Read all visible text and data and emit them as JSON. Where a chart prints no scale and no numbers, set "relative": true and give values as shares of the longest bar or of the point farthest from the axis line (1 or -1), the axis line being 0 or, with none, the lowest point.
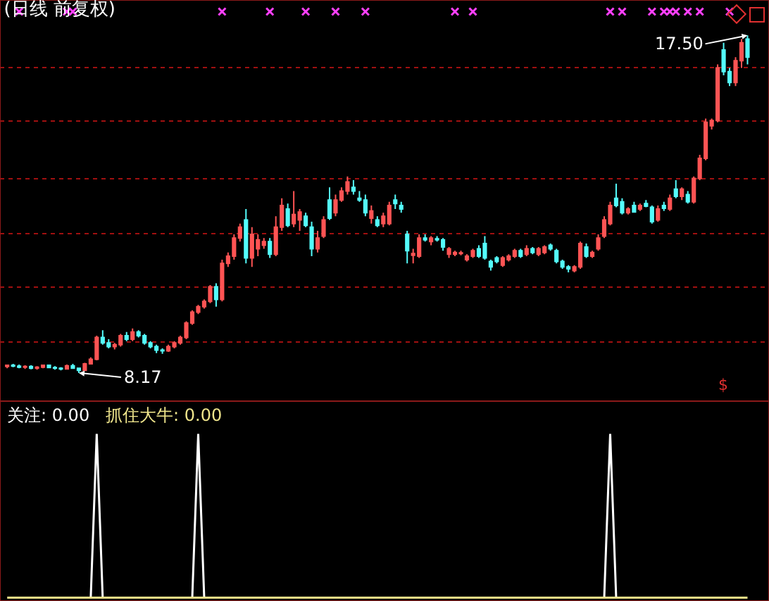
{
  "chart_data": [
    {
      "type": "candlestick",
      "title": "(日线 前复权)",
      "ylim": [
        7.39,
        18.48
      ],
      "yticks": [
        {
          "value": 9.03,
          "label": null
        },
        {
          "value": 10.54,
          "label": null
        },
        {
          "value": 12.02,
          "label": null
        },
        {
          "value": 13.54,
          "label": null
        },
        {
          "value": 15.13,
          "label": null
        },
        {
          "value": 16.61,
          "label": null
        }
      ],
      "grid": "y",
      "categories": [
        null,
        null,
        null,
        null,
        null,
        null,
        null,
        null,
        null,
        null,
        null,
        null,
        null,
        null,
        null,
        null,
        null,
        null,
        null,
        null,
        null,
        null,
        null,
        null,
        null,
        null,
        null,
        null,
        null,
        null,
        null,
        null,
        null,
        null,
        null,
        null,
        null,
        null,
        null,
        null,
        null,
        null,
        null,
        null,
        null,
        null,
        null,
        null,
        null,
        null,
        null,
        null,
        null,
        null,
        null,
        null,
        null,
        null,
        null,
        null,
        null,
        null,
        null,
        null,
        null,
        null,
        null,
        null,
        null,
        null,
        null,
        null,
        null,
        null,
        null,
        null,
        null,
        null,
        null,
        null,
        null,
        null,
        null,
        null,
        null,
        null,
        null,
        null,
        null,
        null,
        null,
        null,
        null,
        null,
        null,
        null,
        null,
        null,
        null,
        null,
        null,
        null,
        null,
        null,
        null,
        null,
        null,
        null,
        null,
        null,
        null,
        null,
        null,
        null,
        null,
        null,
        null,
        null,
        null,
        null,
        null,
        null,
        null,
        null,
        null
      ],
      "annotations": [
        "17.50",
        "8.17",
        "$"
      ],
      "series": [
        {
          "colors": [
            "#ff5454",
            "#54fcfc",
            "#54fcfc",
            "#ff5454",
            "#54fcfc",
            "#ff5454",
            "#ff5454",
            "#54fcfc",
            "#54fcfc",
            "#54fcfc",
            "#ff5454",
            "#54fcfc",
            "#54fcfc",
            "#ff5454",
            "#ff5454",
            "#ff5454",
            "#54fcfc",
            "#54fcfc",
            "#ff5454",
            "#ff5454",
            "#54fcfc",
            "#ff5454",
            "#54fcfc",
            "#54fcfc",
            "#54fcfc",
            "#54fcfc",
            "#54fcfc",
            "#ff5454",
            "#ff5454",
            "#ff5454",
            "#ff5454",
            "#ff5454",
            "#ff5454",
            "#ff5454",
            "#ff5454",
            "#54fcfc",
            "#ff5454",
            "#ff5454",
            "#ff5454",
            "#ff5454",
            "#54fcfc",
            "#ff5454",
            "#ff5454",
            "#ff5454",
            "#54fcfc",
            "#ff5454",
            "#ff5454",
            "#54fcfc",
            "#ff5454",
            "#ff5454",
            "#54fcfc",
            "#54fcfc",
            "#ff5454",
            "#ff5454",
            "#54fcfc",
            "#ff5454",
            "#ff5454",
            "#ff5454",
            "#54fcfc",
            "#54fcfc",
            "#54fcfc",
            "#ff5454",
            "#54fcfc",
            "#ff5454",
            "#ff5454",
            "#54fcfc",
            "#54fcfc",
            "#54fcfc",
            "#ff5454",
            "#ff5454",
            "#54fcfc",
            "#ff5454",
            "#54fcfc",
            "#54fcfc",
            "#ff5454",
            "#ff5454",
            "#ff5454",
            "#ff5454",
            "#ff5454",
            "#54fcfc",
            "#54fcfc",
            "#54fcfc",
            "#54fcfc",
            "#ff5454",
            "#ff5454",
            "#ff5454",
            "#54fcfc",
            "#ff5454",
            "#54fcfc",
            "#ff5454",
            "#ff5454",
            "#54fcfc",
            "#54fcfc",
            "#54fcfc",
            "#54fcfc",
            "#ff5454",
            "#ff5454",
            "#54fcfc",
            "#ff5454",
            "#ff5454",
            "#ff5454",
            "#ff5454",
            "#54fcfc",
            "#54fcfc",
            "#ff5454",
            "#54fcfc",
            "#ff5454",
            "#54fcfc",
            "#54fcfc",
            "#ff5454",
            "#54fcfc",
            "#ff5454",
            "#54fcfc",
            "#ff5454",
            "#54fcfc",
            "#ff5454",
            "#ff5454",
            "#ff5454",
            "#ff5454",
            "#ff5454",
            "#54fcfc",
            "#54fcfc",
            "#ff5454",
            "#ff5454",
            "#54fcfc"
          ],
          "ohlc": [
            [
              8.35,
              8.4,
              8.3,
              8.38
            ],
            [
              8.38,
              8.42,
              8.33,
              8.36
            ],
            [
              8.36,
              8.4,
              8.3,
              8.33
            ],
            [
              8.33,
              8.38,
              8.28,
              8.35
            ],
            [
              8.35,
              8.38,
              8.27,
              8.3
            ],
            [
              8.3,
              8.36,
              8.26,
              8.33
            ],
            [
              8.33,
              8.4,
              8.3,
              8.38
            ],
            [
              8.38,
              8.4,
              8.3,
              8.32
            ],
            [
              8.32,
              8.36,
              8.26,
              8.3
            ],
            [
              8.3,
              8.33,
              8.24,
              8.28
            ],
            [
              8.28,
              8.4,
              8.26,
              8.37
            ],
            [
              8.37,
              8.42,
              8.28,
              8.3
            ],
            [
              8.3,
              8.32,
              8.17,
              8.24
            ],
            [
              8.24,
              8.45,
              8.22,
              8.42
            ],
            [
              8.42,
              8.6,
              8.4,
              8.55
            ],
            [
              8.55,
              9.2,
              8.52,
              9.15
            ],
            [
              9.15,
              9.35,
              8.95,
              9.0
            ],
            [
              9.0,
              9.1,
              8.85,
              8.9
            ],
            [
              8.9,
              9.0,
              8.82,
              8.95
            ],
            [
              8.95,
              9.25,
              8.9,
              9.2
            ],
            [
              9.2,
              9.3,
              9.05,
              9.1
            ],
            [
              9.1,
              9.4,
              9.05,
              9.3
            ],
            [
              9.3,
              9.35,
              9.15,
              9.2
            ],
            [
              9.2,
              9.25,
              8.95,
              9.0
            ],
            [
              9.0,
              9.05,
              8.85,
              8.9
            ],
            [
              8.9,
              8.95,
              8.72,
              8.8
            ],
            [
              8.8,
              8.85,
              8.7,
              8.78
            ],
            [
              8.78,
              8.95,
              8.75,
              8.9
            ],
            [
              8.9,
              9.05,
              8.85,
              9.0
            ],
            [
              9.0,
              9.2,
              8.95,
              9.15
            ],
            [
              9.15,
              9.6,
              9.1,
              9.55
            ],
            [
              9.55,
              9.9,
              9.5,
              9.85
            ],
            [
              9.85,
              10.05,
              9.8,
              10.0
            ],
            [
              10.0,
              10.2,
              9.95,
              10.15
            ],
            [
              10.15,
              10.6,
              10.1,
              10.55
            ],
            [
              10.55,
              10.65,
              10.0,
              10.2
            ],
            [
              10.2,
              11.3,
              10.15,
              11.2
            ],
            [
              11.2,
              11.5,
              11.1,
              11.4
            ],
            [
              11.4,
              12.0,
              11.3,
              11.9
            ],
            [
              11.9,
              12.3,
              11.8,
              12.2
            ],
            [
              12.4,
              12.7,
              11.2,
              11.35
            ],
            [
              11.35,
              12.2,
              11.1,
              12.0
            ],
            [
              11.6,
              12.0,
              11.4,
              11.85
            ],
            [
              11.7,
              11.9,
              11.6,
              11.8
            ],
            [
              11.8,
              11.9,
              11.35,
              11.45
            ],
            [
              11.45,
              12.5,
              11.4,
              12.2
            ],
            [
              12.2,
              13.0,
              12.1,
              12.8
            ],
            [
              12.7,
              12.85,
              12.2,
              12.25
            ],
            [
              12.3,
              13.2,
              12.2,
              12.55
            ],
            [
              12.4,
              12.7,
              12.1,
              12.62
            ],
            [
              12.5,
              12.6,
              12.2,
              12.25
            ],
            [
              12.2,
              12.35,
              11.4,
              11.6
            ],
            [
              11.6,
              12.1,
              11.5,
              11.9
            ],
            [
              11.95,
              12.5,
              11.9,
              12.4
            ],
            [
              12.95,
              13.3,
              12.4,
              12.45
            ],
            [
              12.6,
              13.1,
              12.5,
              12.95
            ],
            [
              12.95,
              13.3,
              12.9,
              13.2
            ],
            [
              13.2,
              13.6,
              13.1,
              13.45
            ],
            [
              13.3,
              13.5,
              13.1,
              13.2
            ],
            [
              13.0,
              13.2,
              12.9,
              12.95
            ],
            [
              12.95,
              13.1,
              12.5,
              12.6
            ],
            [
              12.45,
              12.8,
              12.3,
              12.65
            ],
            [
              12.4,
              12.5,
              12.2,
              12.25
            ],
            [
              12.3,
              12.6,
              12.2,
              12.5
            ],
            [
              12.3,
              12.9,
              12.25,
              12.8
            ],
            [
              12.95,
              13.1,
              12.7,
              12.85
            ],
            [
              12.8,
              12.9,
              12.6,
              12.7
            ],
            [
              12.0,
              12.1,
              11.2,
              11.55
            ],
            [
              11.42,
              11.6,
              11.2,
              11.47
            ],
            [
              11.4,
              12.0,
              11.35,
              11.9
            ],
            [
              11.9,
              12.0,
              11.8,
              11.85
            ],
            [
              11.8,
              11.95,
              11.7,
              11.9
            ],
            [
              11.88,
              11.95,
              11.8,
              11.85
            ],
            [
              11.85,
              11.9,
              11.55,
              11.65
            ],
            [
              11.45,
              11.65,
              11.35,
              11.6
            ],
            [
              11.45,
              11.55,
              11.4,
              11.5
            ],
            [
              11.47,
              11.55,
              11.42,
              11.49
            ],
            [
              11.3,
              11.45,
              11.25,
              11.4
            ],
            [
              11.4,
              11.6,
              11.35,
              11.55
            ],
            [
              11.6,
              11.7,
              11.35,
              11.4
            ],
            [
              11.75,
              11.95,
              11.3,
              11.35
            ],
            [
              11.25,
              11.3,
              11.0,
              11.1
            ],
            [
              11.35,
              11.4,
              11.2,
              11.25
            ],
            [
              11.15,
              11.4,
              11.1,
              11.35
            ],
            [
              11.3,
              11.45,
              11.25,
              11.4
            ],
            [
              11.4,
              11.6,
              11.35,
              11.55
            ],
            [
              11.55,
              11.6,
              11.35,
              11.4
            ],
            [
              11.45,
              11.7,
              11.4,
              11.6
            ],
            [
              11.6,
              11.65,
              11.45,
              11.5
            ],
            [
              11.45,
              11.65,
              11.4,
              11.6
            ],
            [
              11.5,
              11.7,
              11.45,
              11.65
            ],
            [
              11.7,
              11.75,
              11.55,
              11.6
            ],
            [
              11.55,
              11.6,
              11.2,
              11.25
            ],
            [
              11.25,
              11.3,
              11.05,
              11.1
            ],
            [
              11.1,
              11.15,
              10.95,
              11.05
            ],
            [
              11.0,
              11.15,
              10.95,
              11.1
            ],
            [
              11.1,
              11.8,
              11.05,
              11.75
            ],
            [
              11.65,
              11.75,
              11.35,
              11.4
            ],
            [
              11.4,
              11.55,
              11.35,
              11.5
            ],
            [
              11.6,
              12.0,
              11.55,
              11.9
            ],
            [
              11.95,
              12.5,
              11.9,
              12.4
            ],
            [
              12.3,
              12.9,
              12.25,
              12.8
            ],
            [
              13.0,
              13.4,
              12.75,
              12.8
            ],
            [
              12.9,
              13.0,
              12.55,
              12.6
            ],
            [
              12.6,
              12.75,
              12.55,
              12.7
            ],
            [
              12.8,
              12.9,
              12.6,
              12.62
            ],
            [
              12.7,
              12.85,
              12.65,
              12.8
            ],
            [
              12.85,
              12.95,
              12.75,
              12.78
            ],
            [
              12.75,
              12.8,
              12.3,
              12.35
            ],
            [
              12.4,
              12.8,
              12.35,
              12.7
            ],
            [
              12.8,
              12.9,
              12.65,
              12.72
            ],
            [
              12.7,
              13.1,
              12.65,
              13.0
            ],
            [
              13.25,
              13.5,
              13.0,
              13.05
            ],
            [
              13.05,
              13.3,
              12.95,
              13.25
            ],
            [
              13.1,
              13.2,
              12.85,
              12.9
            ],
            [
              12.9,
              13.6,
              12.85,
              13.55
            ],
            [
              13.55,
              14.2,
              13.5,
              14.1
            ],
            [
              14.1,
              15.2,
              14.05,
              15.1
            ],
            [
              15.0,
              15.2,
              14.9,
              15.15
            ],
            [
              15.15,
              16.7,
              15.1,
              16.6
            ],
            [
              17.1,
              17.3,
              16.4,
              16.5
            ],
            [
              16.5,
              16.6,
              16.1,
              16.2
            ],
            [
              16.2,
              16.9,
              16.1,
              16.8
            ],
            [
              16.8,
              17.4,
              16.6,
              17.3
            ],
            [
              17.4,
              17.5,
              16.7,
              16.9
            ]
          ]
        },
        {
          "type": "scatter",
          "color": "#ff40ff",
          "marker": "cross",
          "values": [
            null,
            null,
            18.16,
            null,
            null,
            null,
            null,
            null,
            null,
            null,
            18.16,
            18.16,
            null,
            null,
            null,
            null,
            null,
            null,
            null,
            null,
            null,
            null,
            null,
            null,
            null,
            null,
            null,
            null,
            null,
            null,
            null,
            null,
            null,
            null,
            null,
            null,
            18.16,
            null,
            null,
            null,
            null,
            null,
            null,
            null,
            18.16,
            null,
            null,
            null,
            null,
            null,
            18.16,
            null,
            null,
            null,
            null,
            18.16,
            null,
            null,
            null,
            null,
            18.16,
            null,
            null,
            null,
            null,
            null,
            null,
            null,
            null,
            null,
            null,
            null,
            null,
            null,
            null,
            18.16,
            null,
            null,
            18.16,
            null,
            null,
            null,
            null,
            null,
            null,
            null,
            null,
            null,
            null,
            null,
            null,
            null,
            null,
            null,
            null,
            null,
            null,
            null,
            null,
            null,
            null,
            18.16,
            null,
            18.16,
            null,
            null,
            null,
            null,
            18.16,
            null,
            18.16,
            18.16,
            18.16,
            null,
            18.16,
            null,
            18.16,
            null,
            null,
            null,
            null,
            18.16,
            null,
            null,
            null
          ]
        }
      ]
    },
    {
      "type": "line",
      "relative": true,
      "annotations": [
        "关注: 0.00",
        "抓住大牛: 0.00"
      ],
      "categories": [
        null,
        null,
        null,
        null,
        null,
        null,
        null,
        null,
        null,
        null,
        null,
        null,
        null,
        null,
        null,
        null,
        null,
        null,
        null,
        null,
        null,
        null,
        null,
        null,
        null,
        null,
        null,
        null,
        null,
        null,
        null,
        null,
        null,
        null,
        null,
        null,
        null,
        null,
        null,
        null,
        null,
        null,
        null,
        null,
        null,
        null,
        null,
        null,
        null,
        null,
        null,
        null,
        null,
        null,
        null,
        null,
        null,
        null,
        null,
        null,
        null,
        null,
        null,
        null,
        null,
        null,
        null,
        null,
        null,
        null,
        null,
        null,
        null,
        null,
        null,
        null,
        null,
        null,
        null,
        null,
        null,
        null,
        null,
        null,
        null,
        null,
        null,
        null,
        null,
        null,
        null,
        null,
        null,
        null,
        null,
        null,
        null,
        null,
        null,
        null,
        null,
        null,
        null,
        null,
        null,
        null,
        null,
        null,
        null,
        null,
        null,
        null,
        null,
        null,
        null,
        null,
        null,
        null,
        null,
        null,
        null,
        null,
        null,
        null,
        null
      ],
      "series": [
        {
          "color": "#ffffff",
          "values": [
            null,
            null,
            null,
            null,
            null,
            null,
            null,
            null,
            null,
            null,
            null,
            null,
            null,
            null,
            0,
            1,
            0,
            null,
            null,
            null,
            null,
            null,
            null,
            null,
            null,
            null,
            null,
            null,
            null,
            null,
            null,
            0,
            1,
            0,
            null,
            null,
            null,
            null,
            null,
            null,
            null,
            null,
            null,
            null,
            null,
            null,
            null,
            null,
            null,
            null,
            null,
            null,
            null,
            null,
            null,
            null,
            null,
            null,
            null,
            null,
            null,
            null,
            null,
            null,
            null,
            null,
            null,
            null,
            null,
            null,
            null,
            null,
            null,
            null,
            null,
            null,
            null,
            null,
            null,
            null,
            null,
            null,
            null,
            null,
            null,
            null,
            null,
            null,
            null,
            null,
            null,
            null,
            null,
            null,
            null,
            null,
            null,
            null,
            null,
            null,
            0,
            1,
            0,
            null,
            null,
            null,
            null,
            null,
            null,
            null,
            null,
            null,
            null,
            null,
            null,
            null,
            null,
            null,
            null,
            null,
            null,
            null,
            null,
            null,
            null
          ]
        },
        {
          "color": "#f0e68c",
          "values": [
            0,
            0,
            0,
            0,
            0,
            0,
            0,
            0,
            0,
            0,
            0,
            0,
            0,
            0,
            0,
            0,
            0,
            0,
            0,
            0,
            0,
            0,
            0,
            0,
            0,
            0,
            0,
            0,
            0,
            0,
            0,
            0,
            0,
            0,
            0,
            0,
            0,
            0,
            0,
            0,
            0,
            0,
            0,
            0,
            0,
            0,
            0,
            0,
            0,
            0,
            0,
            0,
            0,
            0,
            0,
            0,
            0,
            0,
            0,
            0,
            0,
            0,
            0,
            0,
            0,
            0,
            0,
            0,
            0,
            0,
            0,
            0,
            0,
            0,
            0,
            0,
            0,
            0,
            0,
            0,
            0,
            0,
            0,
            0,
            0,
            0,
            0,
            0,
            0,
            0,
            0,
            0,
            0,
            0,
            0,
            0,
            0,
            0,
            0,
            0,
            0,
            0,
            0,
            0,
            0,
            0,
            0,
            0,
            0,
            0,
            0,
            0,
            0,
            0,
            0,
            0,
            0,
            0,
            0,
            0,
            0,
            0,
            0,
            0,
            0
          ]
        }
      ]
    }
  ]
}
